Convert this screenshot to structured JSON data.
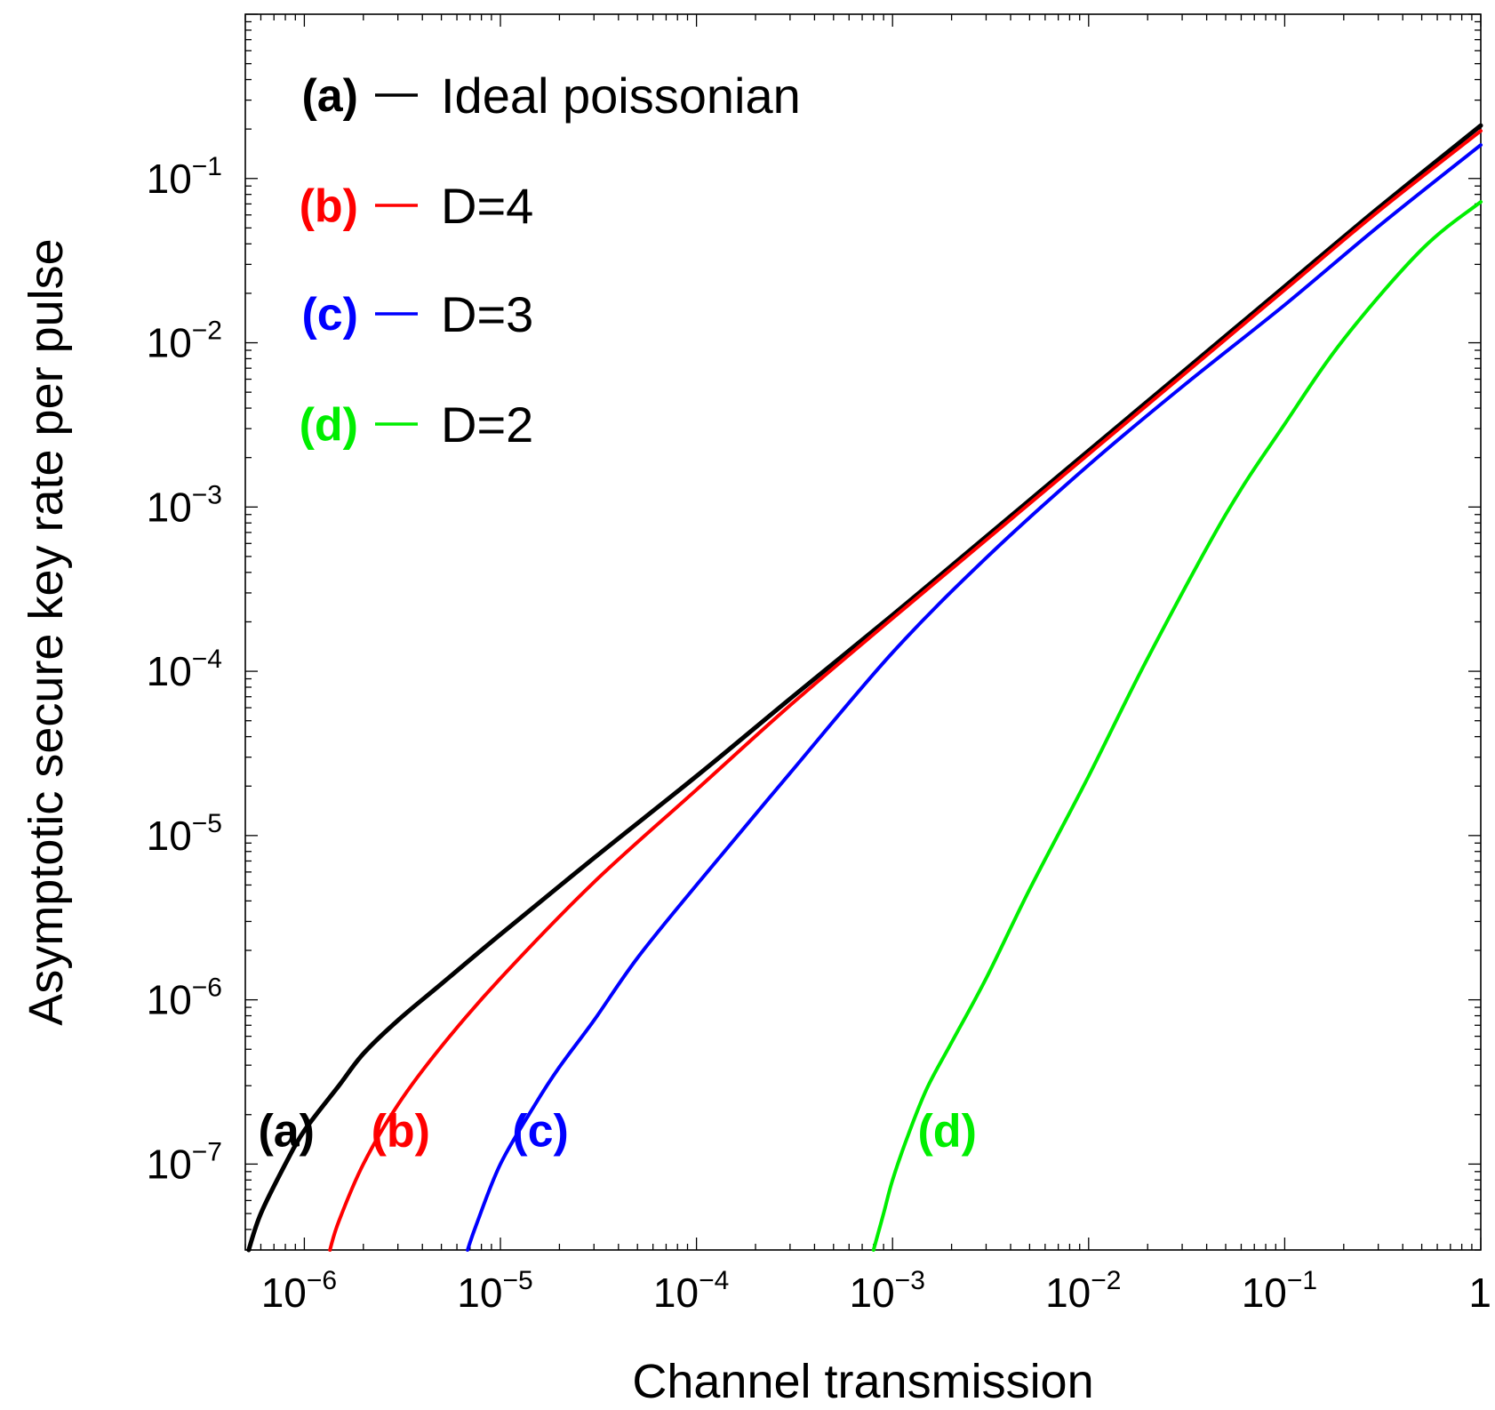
{
  "chart_data": {
    "type": "line",
    "title": "",
    "xlabel": "Channel transmission",
    "ylabel": "Asymptotic secure key rate per pulse",
    "x_scale": "log",
    "y_scale": "log",
    "xlim": [
      5e-07,
      1
    ],
    "ylim": [
      3e-08,
      1
    ],
    "x_ticks": [
      {
        "value": 1e-06,
        "base": "10",
        "exp": "−6"
      },
      {
        "value": 1e-05,
        "base": "10",
        "exp": "−5"
      },
      {
        "value": 0.0001,
        "base": "10",
        "exp": "−4"
      },
      {
        "value": 0.001,
        "base": "10",
        "exp": "−3"
      },
      {
        "value": 0.01,
        "base": "10",
        "exp": "−2"
      },
      {
        "value": 0.1,
        "base": "10",
        "exp": "−1"
      },
      {
        "value": 1,
        "base": "1",
        "exp": ""
      }
    ],
    "y_ticks": [
      {
        "value": 1e-07,
        "base": "10",
        "exp": "−7"
      },
      {
        "value": 1e-06,
        "base": "10",
        "exp": "−6"
      },
      {
        "value": 1e-05,
        "base": "10",
        "exp": "−5"
      },
      {
        "value": 0.0001,
        "base": "10",
        "exp": "−4"
      },
      {
        "value": 0.001,
        "base": "10",
        "exp": "−3"
      },
      {
        "value": 0.01,
        "base": "10",
        "exp": "−2"
      },
      {
        "value": 0.1,
        "base": "10",
        "exp": "−1"
      }
    ],
    "grid": false,
    "legend_position": "top-left",
    "series": [
      {
        "tag": "(a)",
        "name": "Ideal poissonian",
        "color": "#000000",
        "x": [
          5.2e-07,
          6e-07,
          8e-07,
          1e-06,
          1.5e-06,
          2e-06,
          3e-06,
          5e-06,
          1e-05,
          3e-05,
          0.0001,
          0.0003,
          0.001,
          0.003,
          0.01,
          0.03,
          0.1,
          0.3,
          1
        ],
        "y": [
          3e-08,
          5e-08,
          1e-07,
          1.6e-07,
          3e-07,
          4.7e-07,
          7.5e-07,
          1.25e-06,
          2.5e-06,
          7.3e-06,
          2.3e-05,
          6.8e-05,
          0.00022,
          0.00066,
          0.0022,
          0.0066,
          0.022,
          0.066,
          0.21
        ]
      },
      {
        "tag": "(b)",
        "name": "D=4",
        "color": "#ff0000",
        "x": [
          1.35e-06,
          1.5e-06,
          2e-06,
          3e-06,
          5e-06,
          1e-05,
          3e-05,
          0.0001,
          0.0003,
          0.001,
          0.003,
          0.01,
          0.03,
          0.1,
          0.3,
          1
        ],
        "y": [
          3e-08,
          4.5e-08,
          1e-07,
          2.3e-07,
          5.2e-07,
          1.35e-06,
          5.2e-06,
          1.9e-05,
          6.2e-05,
          0.00021,
          0.00063,
          0.0021,
          0.0063,
          0.021,
          0.063,
          0.195
        ]
      },
      {
        "tag": "(c)",
        "name": "D=3",
        "color": "#0000ff",
        "x": [
          6.8e-06,
          7.5e-06,
          1e-05,
          1.5e-05,
          2e-05,
          3e-05,
          5e-05,
          0.0001,
          0.0003,
          0.001,
          0.003,
          0.01,
          0.03,
          0.1,
          0.3,
          1
        ],
        "y": [
          3e-08,
          4.2e-08,
          1e-07,
          2.3e-07,
          3.9e-07,
          7.5e-07,
          1.8e-06,
          5e-06,
          2.4e-05,
          0.00013,
          0.00049,
          0.0018,
          0.0054,
          0.017,
          0.051,
          0.16
        ]
      },
      {
        "tag": "(d)",
        "name": "D=2",
        "color": "#00ee00",
        "x": [
          0.0008,
          0.0009,
          0.001,
          0.0012,
          0.0015,
          0.002,
          0.003,
          0.005,
          0.01,
          0.02,
          0.05,
          0.1,
          0.2,
          0.5,
          1
        ],
        "y": [
          3e-08,
          5e-08,
          8e-08,
          1.5e-07,
          2.9e-07,
          5.5e-07,
          1.35e-06,
          4.7e-06,
          2.3e-05,
          0.00012,
          0.0009,
          0.0032,
          0.0105,
          0.037,
          0.072
        ]
      }
    ],
    "annotations": [
      {
        "text": "(a)",
        "color": "#000000",
        "x": 8.1e-07,
        "y": 1.6e-07
      },
      {
        "text": "(b)",
        "color": "#ff0000",
        "x": 3.1e-06,
        "y": 1.6e-07
      },
      {
        "text": "(c)",
        "color": "#0000ff",
        "x": 1.6e-05,
        "y": 1.6e-07
      },
      {
        "text": "(d)",
        "color": "#00ee00",
        "x": 0.0019,
        "y": 1.6e-07
      }
    ]
  }
}
